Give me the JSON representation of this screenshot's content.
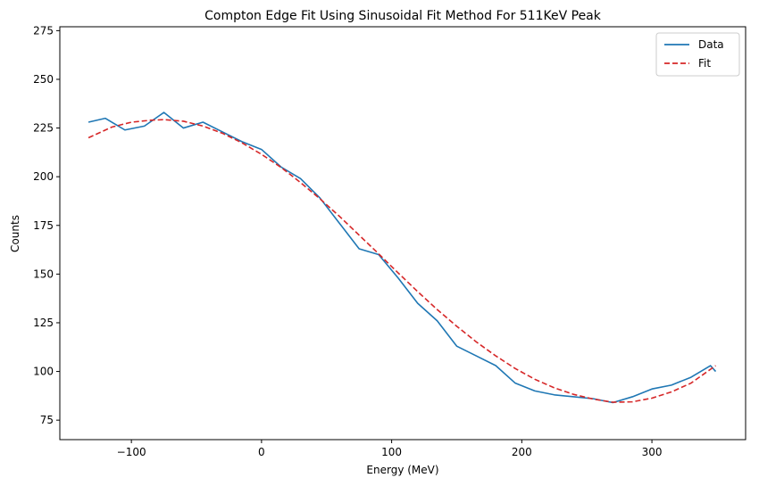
{
  "chart_data": {
    "type": "line",
    "title": "Compton Edge Fit Using Sinusoidal Fit Method For 511KeV Peak",
    "xlabel": "Energy (MeV)",
    "ylabel": "Counts",
    "xlim": [
      -155,
      372
    ],
    "ylim": [
      65,
      277
    ],
    "xticks": [
      -100,
      0,
      100,
      200,
      300
    ],
    "xtick_labels": [
      "−100",
      "0",
      "100",
      "200",
      "300"
    ],
    "yticks": [
      75,
      100,
      125,
      150,
      175,
      200,
      225,
      250,
      275
    ],
    "ytick_labels": [
      "75",
      "100",
      "125",
      "150",
      "175",
      "200",
      "225",
      "250",
      "275"
    ],
    "grid": false,
    "legend": {
      "placement": "top-right",
      "entries": [
        "Data",
        "Fit"
      ]
    },
    "series": [
      {
        "name": "Data",
        "style": "solid",
        "color": "#1f77b4",
        "x": [
          -133,
          -120,
          -105,
          -90,
          -75,
          -60,
          -45,
          -30,
          -15,
          0,
          15,
          30,
          45,
          60,
          75,
          90,
          105,
          120,
          135,
          150,
          165,
          180,
          195,
          210,
          225,
          240,
          255,
          270,
          285,
          300,
          315,
          330,
          345,
          349
        ],
        "y": [
          228,
          230,
          224,
          226,
          233,
          225,
          228,
          223,
          218,
          214,
          205,
          199,
          189,
          176,
          163,
          160,
          148,
          135,
          126,
          113,
          108,
          103,
          94,
          90,
          88,
          87,
          86,
          84,
          87,
          91,
          93,
          97,
          103,
          100
        ]
      },
      {
        "name": "Fit",
        "style": "dashed",
        "color": "#d62728",
        "x": [
          -133,
          -115,
          -100,
          -85,
          -75,
          -60,
          -45,
          -30,
          -15,
          0,
          15,
          30,
          45,
          60,
          75,
          90,
          105,
          120,
          135,
          150,
          165,
          180,
          195,
          210,
          225,
          240,
          255,
          270,
          285,
          300,
          315,
          330,
          349
        ],
        "y": [
          220,
          225.5,
          228,
          229,
          229.3,
          228.5,
          226,
          222.3,
          217.4,
          211.5,
          204.8,
          197,
          188.6,
          179.6,
          170,
          160.4,
          150.6,
          141,
          131.8,
          123.2,
          115.2,
          108,
          101.5,
          96,
          91.6,
          88.2,
          85.8,
          84.2,
          84.4,
          86.3,
          89.5,
          94,
          103
        ]
      }
    ]
  }
}
